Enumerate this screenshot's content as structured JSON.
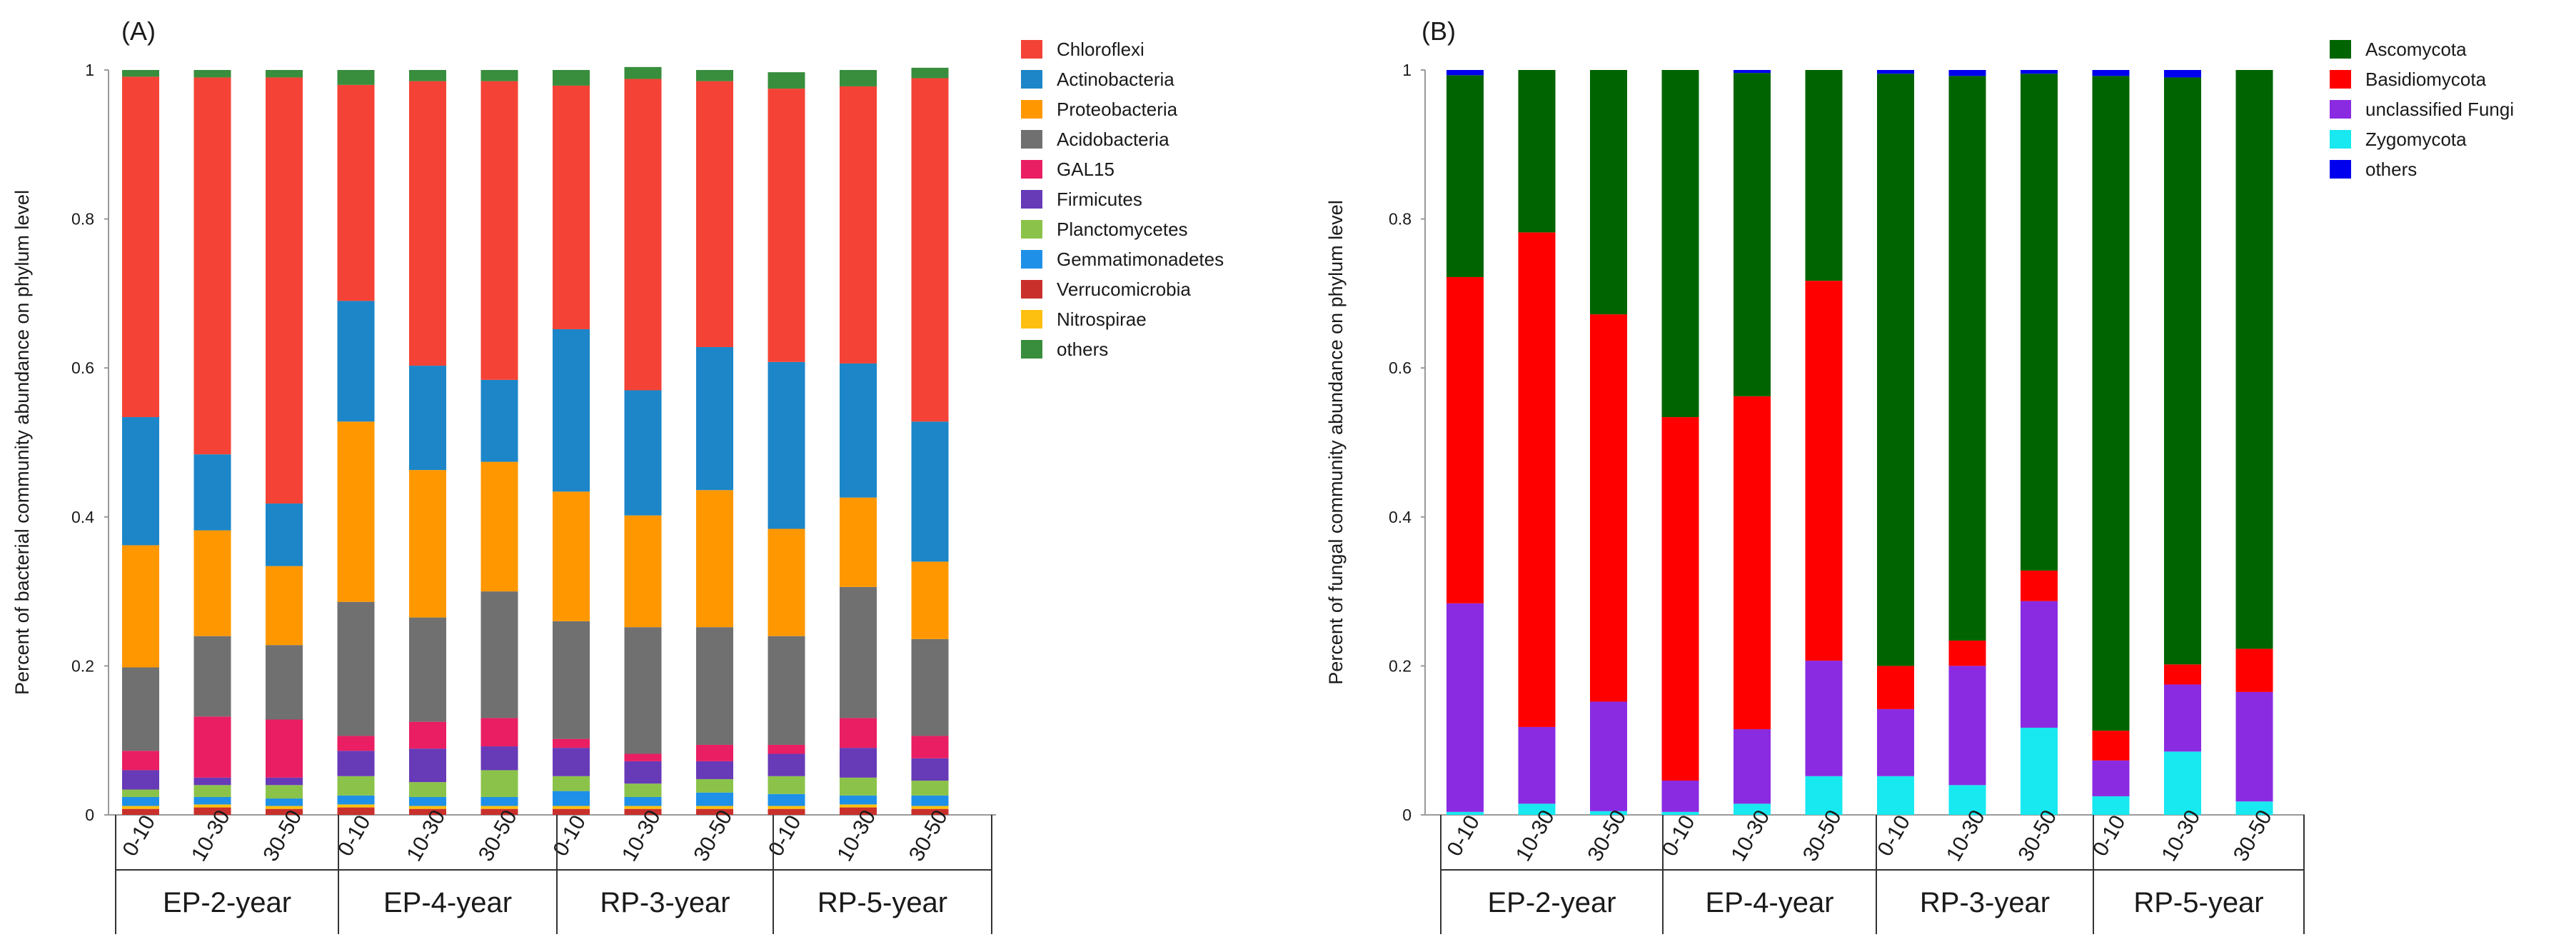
{
  "chart_data": [
    {
      "type": "bar",
      "stacked": true,
      "panel_label": "(A)",
      "ylabel": "Percent of bacterial community abundance on phylum level",
      "ylim": [
        0,
        1
      ],
      "yticks": [
        "0",
        "0.2",
        "0.4",
        "0.6",
        "0.8",
        "1"
      ],
      "categories": [
        "0-10",
        "10-30",
        "30-50",
        "0-10",
        "10-30",
        "30-50",
        "0-10",
        "10-30",
        "30-50",
        "0-10",
        "10-30",
        "30-50"
      ],
      "groups": [
        "EP-2-year",
        "EP-4-year",
        "RP-3-year",
        "RP-5-year"
      ],
      "legend_position": "right",
      "series": [
        {
          "name": "Verrucomicrobia",
          "color": "#c9302c",
          "values": [
            0.008,
            0.01,
            0.008,
            0.01,
            0.008,
            0.008,
            0.008,
            0.008,
            0.008,
            0.008,
            0.01,
            0.008
          ]
        },
        {
          "name": "Nitrospirae",
          "color": "#fdc010",
          "values": [
            0.004,
            0.004,
            0.004,
            0.004,
            0.004,
            0.004,
            0.004,
            0.004,
            0.004,
            0.004,
            0.004,
            0.004
          ]
        },
        {
          "name": "Gemmatimonadetes",
          "color": "#1e90e8",
          "values": [
            0.012,
            0.01,
            0.01,
            0.012,
            0.012,
            0.012,
            0.02,
            0.012,
            0.018,
            0.016,
            0.012,
            0.014
          ]
        },
        {
          "name": "Planctomycetes",
          "color": "#8bc34a",
          "values": [
            0.01,
            0.016,
            0.018,
            0.026,
            0.02,
            0.036,
            0.02,
            0.018,
            0.018,
            0.024,
            0.024,
            0.02
          ]
        },
        {
          "name": "Firmicutes",
          "color": "#673ab7",
          "values": [
            0.026,
            0.01,
            0.01,
            0.034,
            0.045,
            0.032,
            0.038,
            0.03,
            0.024,
            0.03,
            0.04,
            0.03
          ]
        },
        {
          "name": "GAL15",
          "color": "#e91e63",
          "values": [
            0.026,
            0.082,
            0.078,
            0.02,
            0.036,
            0.038,
            0.012,
            0.01,
            0.022,
            0.012,
            0.04,
            0.03
          ]
        },
        {
          "name": "Acidobacteria",
          "color": "#707070",
          "values": [
            0.112,
            0.108,
            0.1,
            0.18,
            0.14,
            0.17,
            0.158,
            0.17,
            0.158,
            0.146,
            0.176,
            0.13
          ]
        },
        {
          "name": "Proteobacteria",
          "color": "#ff9800",
          "values": [
            0.164,
            0.142,
            0.106,
            0.242,
            0.198,
            0.174,
            0.174,
            0.15,
            0.184,
            0.144,
            0.12,
            0.104
          ]
        },
        {
          "name": "Actinobacteria",
          "color": "#1c86c8",
          "values": [
            0.172,
            0.102,
            0.084,
            0.162,
            0.14,
            0.11,
            0.218,
            0.168,
            0.192,
            0.224,
            0.18,
            0.188
          ]
        },
        {
          "name": "Chloroflexi",
          "color": "#f44336",
          "values": [
            0.457,
            0.506,
            0.572,
            0.29,
            0.382,
            0.401,
            0.327,
            0.418,
            0.357,
            0.367,
            0.372,
            0.461
          ]
        },
        {
          "name": "others",
          "color": "#388e3c",
          "values": [
            0.009,
            0.01,
            0.01,
            0.02,
            0.015,
            0.015,
            0.021,
            0.016,
            0.015,
            0.022,
            0.022,
            0.014
          ]
        }
      ],
      "legend_order": [
        "Chloroflexi",
        "Actinobacteria",
        "Proteobacteria",
        "Acidobacteria",
        "GAL15",
        "Firmicutes",
        "Planctomycetes",
        "Gemmatimonadetes",
        "Verrucomicrobia",
        "Nitrospirae",
        "others"
      ]
    },
    {
      "type": "bar",
      "stacked": true,
      "panel_label": "(B)",
      "ylabel": "Percent of fungal community abundance on phylum level",
      "ylim": [
        0,
        1
      ],
      "yticks": [
        "0",
        "0.2",
        "0.4",
        "0.6",
        "0.8",
        "1"
      ],
      "categories": [
        "0-10",
        "10-30",
        "30-50",
        "0-10",
        "10-30",
        "30-50",
        "0-10",
        "10-30",
        "30-50",
        "0-10",
        "10-30",
        "30-50"
      ],
      "groups": [
        "EP-2-year",
        "EP-4-year",
        "RP-3-year",
        "RP-5-year"
      ],
      "legend_position": "right",
      "series": [
        {
          "name": "Zygomycota",
          "color": "#18e8f0",
          "values": [
            0.004,
            0.015,
            0.005,
            0.004,
            0.015,
            0.052,
            0.052,
            0.04,
            0.117,
            0.025,
            0.085,
            0.018
          ]
        },
        {
          "name": "unclassified Fungi",
          "color": "#8a2be2",
          "values": [
            0.28,
            0.103,
            0.147,
            0.042,
            0.1,
            0.155,
            0.09,
            0.16,
            0.17,
            0.048,
            0.09,
            0.147
          ]
        },
        {
          "name": "Basidiomycota",
          "color": "#ff0000",
          "values": [
            0.438,
            0.664,
            0.52,
            0.488,
            0.447,
            0.51,
            0.058,
            0.034,
            0.041,
            0.04,
            0.027,
            0.058
          ]
        },
        {
          "name": "Ascomycota",
          "color": "#006400",
          "values": [
            0.271,
            0.218,
            0.328,
            0.466,
            0.434,
            0.283,
            0.795,
            0.758,
            0.667,
            0.879,
            0.788,
            0.777
          ]
        },
        {
          "name": "others",
          "color": "#0000ee",
          "values": [
            0.007,
            0.0,
            0.0,
            0.0,
            0.004,
            0.0,
            0.005,
            0.008,
            0.005,
            0.008,
            0.01,
            0.0
          ]
        }
      ],
      "legend_order": [
        "Ascomycota",
        "Basidiomycota",
        "unclassified Fungi",
        "Zygomycota",
        "others"
      ]
    }
  ]
}
